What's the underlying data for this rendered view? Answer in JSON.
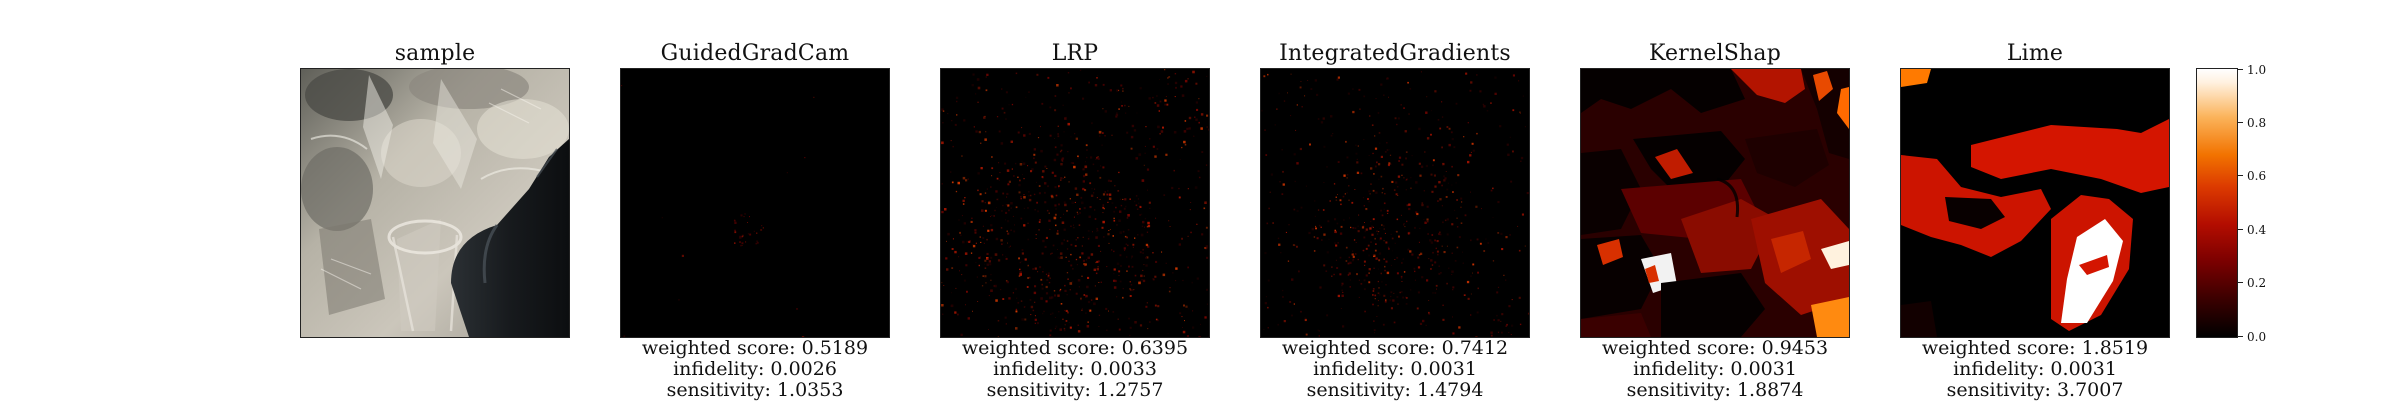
{
  "panels": [
    {
      "title": "sample",
      "image": "sample-glassware-photo",
      "metrics": null
    },
    {
      "title": "GuidedGradCam",
      "image": "guidedgradcam-heatmap",
      "metrics": {
        "weighted_score": "weighted score: 0.5189",
        "infidelity": "infidelity: 0.0026",
        "sensitivity": "sensitivity: 1.0353"
      }
    },
    {
      "title": "LRP",
      "image": "lrp-heatmap",
      "metrics": {
        "weighted_score": "weighted score: 0.6395",
        "infidelity": "infidelity: 0.0033",
        "sensitivity": "sensitivity: 1.2757"
      }
    },
    {
      "title": "IntegratedGradients",
      "image": "integratedgradients-heatmap",
      "metrics": {
        "weighted_score": "weighted score: 0.7412",
        "infidelity": "infidelity: 0.0031",
        "sensitivity": "sensitivity: 1.4794"
      }
    },
    {
      "title": "KernelShap",
      "image": "kernelshap-heatmap",
      "metrics": {
        "weighted_score": "weighted score: 0.9453",
        "infidelity": "infidelity: 0.0031",
        "sensitivity": "sensitivity: 1.8874"
      }
    },
    {
      "title": "Lime",
      "image": "lime-heatmap",
      "metrics": {
        "weighted_score": "weighted score: 1.8519",
        "infidelity": "infidelity: 0.0031",
        "sensitivity": "sensitivity: 3.7007"
      }
    }
  ],
  "colorbar": {
    "ticks": [
      "0.0",
      "0.2",
      "0.4",
      "0.6",
      "0.8",
      "1.0"
    ],
    "range": [
      0,
      1
    ],
    "colormap": [
      "#000000",
      "#7a0000",
      "#dc3a00",
      "#f27300",
      "#ffffff"
    ]
  }
}
